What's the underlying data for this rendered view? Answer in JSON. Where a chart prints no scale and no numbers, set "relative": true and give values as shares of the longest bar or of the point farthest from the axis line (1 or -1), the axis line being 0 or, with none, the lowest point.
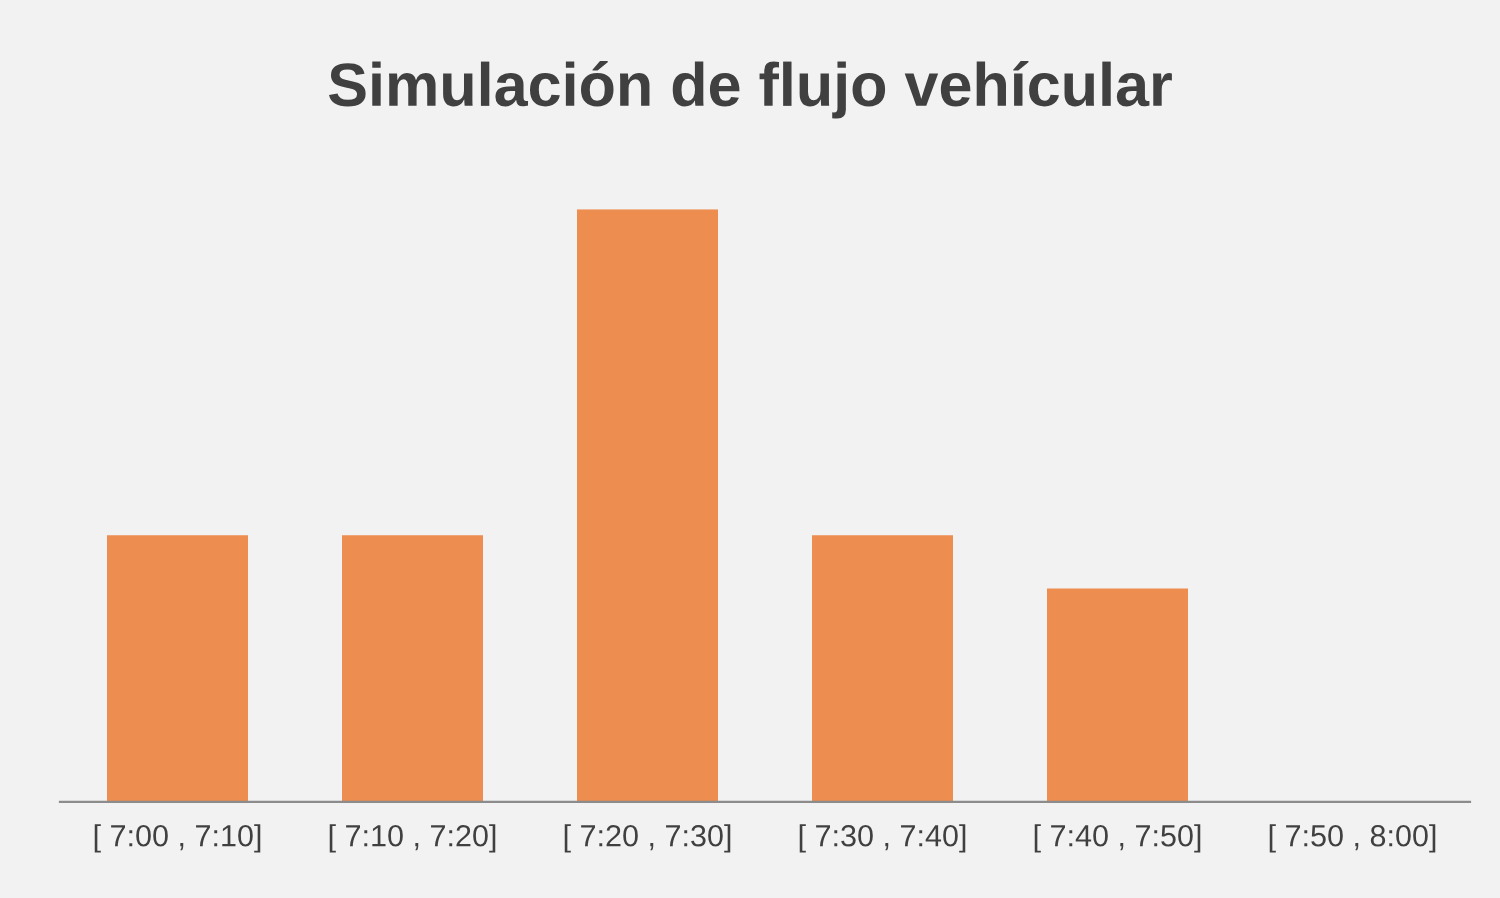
{
  "chart_data": {
    "type": "bar",
    "title": "Simulación de flujo vehícular",
    "relative": true,
    "categories": [
      "[ 7:00 , 7:10]",
      "[ 7:10 , 7:20]",
      "[ 7:20 , 7:30]",
      "[ 7:30 , 7:40]",
      "[ 7:40 , 7:50]",
      "[ 7:50 , 8:00]"
    ],
    "values": [
      0.45,
      0.45,
      1,
      0.45,
      0.36,
      0
    ],
    "color": "#ed8d4f",
    "grid": false,
    "legend": false
  }
}
